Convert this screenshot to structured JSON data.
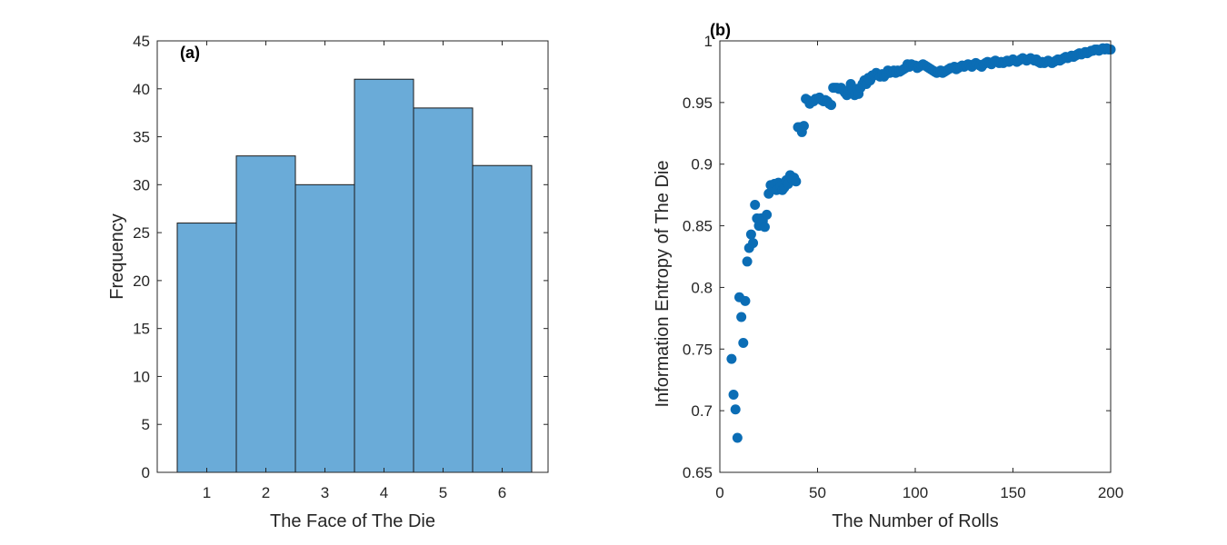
{
  "chart_data": [
    {
      "type": "bar",
      "panel_label": "(a)",
      "title": "",
      "xlabel": "The Face of The Die",
      "ylabel": "Frequency",
      "categories": [
        "1",
        "2",
        "3",
        "4",
        "5",
        "6"
      ],
      "values": [
        26,
        33,
        30,
        41,
        38,
        32
      ],
      "ylim": [
        0,
        45
      ],
      "yticks": [
        0,
        5,
        10,
        15,
        20,
        25,
        30,
        35,
        40,
        45
      ],
      "xticks": [
        1,
        2,
        3,
        4,
        5,
        6
      ],
      "grid": false,
      "colors": {
        "bar_fill": "#6aabd8",
        "bar_edge": "#1a1a1a"
      }
    },
    {
      "type": "scatter",
      "panel_label": "(b)",
      "title": "",
      "xlabel": "The Number of Rolls",
      "ylabel": "Information Entropy of The Die",
      "xlim": [
        0,
        200
      ],
      "ylim": [
        0.65,
        1
      ],
      "xticks": [
        0,
        50,
        100,
        150,
        200
      ],
      "yticks": [
        0.65,
        0.7,
        0.75,
        0.8,
        0.85,
        0.9,
        0.95,
        1
      ],
      "grid": false,
      "colors": {
        "marker": "#0b6db5"
      },
      "points": [
        [
          6,
          0.742
        ],
        [
          7,
          0.713
        ],
        [
          8,
          0.701
        ],
        [
          9,
          0.678
        ],
        [
          10,
          0.792
        ],
        [
          11,
          0.776
        ],
        [
          12,
          0.755
        ],
        [
          13,
          0.789
        ],
        [
          14,
          0.821
        ],
        [
          15,
          0.832
        ],
        [
          16,
          0.843
        ],
        [
          17,
          0.836
        ],
        [
          18,
          0.867
        ],
        [
          19,
          0.856
        ],
        [
          20,
          0.85
        ],
        [
          21,
          0.856
        ],
        [
          22,
          0.854
        ],
        [
          23,
          0.849
        ],
        [
          24,
          0.859
        ],
        [
          25,
          0.876
        ],
        [
          26,
          0.883
        ],
        [
          27,
          0.882
        ],
        [
          28,
          0.884
        ],
        [
          29,
          0.879
        ],
        [
          30,
          0.885
        ],
        [
          31,
          0.882
        ],
        [
          32,
          0.879
        ],
        [
          33,
          0.881
        ],
        [
          34,
          0.887
        ],
        [
          35,
          0.884
        ],
        [
          36,
          0.891
        ],
        [
          37,
          0.888
        ],
        [
          38,
          0.889
        ],
        [
          39,
          0.886
        ],
        [
          40,
          0.93
        ],
        [
          41,
          0.93
        ],
        [
          42,
          0.926
        ],
        [
          43,
          0.931
        ],
        [
          44,
          0.953
        ],
        [
          45,
          0.952
        ],
        [
          46,
          0.949
        ],
        [
          47,
          0.951
        ],
        [
          48,
          0.951
        ],
        [
          49,
          0.953
        ],
        [
          50,
          0.953
        ],
        [
          51,
          0.954
        ],
        [
          52,
          0.952
        ],
        [
          53,
          0.951
        ],
        [
          54,
          0.952
        ],
        [
          55,
          0.951
        ],
        [
          56,
          0.949
        ],
        [
          57,
          0.948
        ],
        [
          58,
          0.962
        ],
        [
          59,
          0.962
        ],
        [
          60,
          0.962
        ],
        [
          61,
          0.961
        ],
        [
          62,
          0.962
        ],
        [
          63,
          0.96
        ],
        [
          64,
          0.958
        ],
        [
          65,
          0.956
        ],
        [
          66,
          0.96
        ],
        [
          67,
          0.965
        ],
        [
          68,
          0.961
        ],
        [
          69,
          0.956
        ],
        [
          70,
          0.961
        ],
        [
          71,
          0.957
        ],
        [
          72,
          0.962
        ],
        [
          73,
          0.965
        ],
        [
          74,
          0.968
        ],
        [
          75,
          0.965
        ],
        [
          76,
          0.97
        ],
        [
          77,
          0.968
        ],
        [
          78,
          0.972
        ],
        [
          79,
          0.972
        ],
        [
          80,
          0.974
        ],
        [
          81,
          0.972
        ],
        [
          82,
          0.971
        ],
        [
          83,
          0.973
        ],
        [
          84,
          0.971
        ],
        [
          85,
          0.973
        ],
        [
          86,
          0.976
        ],
        [
          87,
          0.974
        ],
        [
          88,
          0.975
        ],
        [
          89,
          0.976
        ],
        [
          90,
          0.974
        ],
        [
          91,
          0.976
        ],
        [
          92,
          0.975
        ],
        [
          93,
          0.976
        ],
        [
          94,
          0.977
        ],
        [
          95,
          0.978
        ],
        [
          96,
          0.981
        ],
        [
          97,
          0.979
        ],
        [
          98,
          0.981
        ],
        [
          99,
          0.98
        ],
        [
          100,
          0.98
        ],
        [
          101,
          0.978
        ],
        [
          102,
          0.979
        ],
        [
          103,
          0.98
        ],
        [
          104,
          0.981
        ],
        [
          105,
          0.98
        ],
        [
          106,
          0.979
        ],
        [
          107,
          0.978
        ],
        [
          108,
          0.977
        ],
        [
          109,
          0.976
        ],
        [
          110,
          0.975
        ],
        [
          111,
          0.974
        ],
        [
          112,
          0.975
        ],
        [
          113,
          0.976
        ],
        [
          114,
          0.974
        ],
        [
          115,
          0.975
        ],
        [
          116,
          0.976
        ],
        [
          117,
          0.977
        ],
        [
          118,
          0.978
        ],
        [
          119,
          0.978
        ],
        [
          120,
          0.979
        ],
        [
          121,
          0.977
        ],
        [
          122,
          0.978
        ],
        [
          123,
          0.979
        ],
        [
          124,
          0.98
        ],
        [
          125,
          0.979
        ],
        [
          126,
          0.98
        ],
        [
          127,
          0.981
        ],
        [
          128,
          0.98
        ],
        [
          129,
          0.979
        ],
        [
          130,
          0.981
        ],
        [
          131,
          0.982
        ],
        [
          132,
          0.981
        ],
        [
          133,
          0.98
        ],
        [
          134,
          0.979
        ],
        [
          135,
          0.981
        ],
        [
          136,
          0.982
        ],
        [
          137,
          0.983
        ],
        [
          138,
          0.982
        ],
        [
          139,
          0.981
        ],
        [
          140,
          0.983
        ],
        [
          141,
          0.984
        ],
        [
          142,
          0.983
        ],
        [
          143,
          0.982
        ],
        [
          144,
          0.983
        ],
        [
          145,
          0.982
        ],
        [
          146,
          0.983
        ],
        [
          147,
          0.984
        ],
        [
          148,
          0.983
        ],
        [
          149,
          0.984
        ],
        [
          150,
          0.985
        ],
        [
          151,
          0.984
        ],
        [
          152,
          0.983
        ],
        [
          153,
          0.984
        ],
        [
          154,
          0.985
        ],
        [
          155,
          0.986
        ],
        [
          156,
          0.985
        ],
        [
          157,
          0.984
        ],
        [
          158,
          0.985
        ],
        [
          159,
          0.986
        ],
        [
          160,
          0.985
        ],
        [
          161,
          0.984
        ],
        [
          162,
          0.985
        ],
        [
          163,
          0.983
        ],
        [
          164,
          0.982
        ],
        [
          165,
          0.983
        ],
        [
          166,
          0.982
        ],
        [
          167,
          0.983
        ],
        [
          168,
          0.984
        ],
        [
          169,
          0.983
        ],
        [
          170,
          0.982
        ],
        [
          171,
          0.983
        ],
        [
          172,
          0.984
        ],
        [
          173,
          0.985
        ],
        [
          174,
          0.984
        ],
        [
          175,
          0.985
        ],
        [
          176,
          0.986
        ],
        [
          177,
          0.987
        ],
        [
          178,
          0.986
        ],
        [
          179,
          0.987
        ],
        [
          180,
          0.988
        ],
        [
          181,
          0.987
        ],
        [
          182,
          0.988
        ],
        [
          183,
          0.989
        ],
        [
          184,
          0.99
        ],
        [
          185,
          0.989
        ],
        [
          186,
          0.99
        ],
        [
          187,
          0.991
        ],
        [
          188,
          0.99
        ],
        [
          189,
          0.991
        ],
        [
          190,
          0.992
        ],
        [
          191,
          0.992
        ],
        [
          192,
          0.993
        ],
        [
          193,
          0.993
        ],
        [
          194,
          0.992
        ],
        [
          195,
          0.993
        ],
        [
          196,
          0.994
        ],
        [
          197,
          0.993
        ],
        [
          198,
          0.994
        ],
        [
          199,
          0.993
        ],
        [
          200,
          0.993
        ]
      ]
    }
  ]
}
